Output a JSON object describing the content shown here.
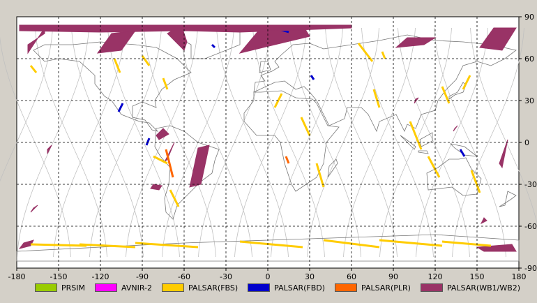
{
  "map": {
    "x_ticks": [
      "-180",
      "-150",
      "-120",
      "-90",
      "-60",
      "-30",
      "0",
      "30",
      "60",
      "90",
      "120",
      "150",
      "180"
    ],
    "y_ticks": [
      "90",
      "60",
      "30",
      "0",
      "-30",
      "-60",
      "-90"
    ],
    "lon_range": [
      -180,
      180
    ],
    "lat_range": [
      -90,
      90
    ],
    "grid": "dashed"
  },
  "legend": [
    {
      "label": "PRSIM",
      "color": "#99cc00"
    },
    {
      "label": "AVNIR-2",
      "color": "#ff00ff"
    },
    {
      "label": "PALSAR(FBS)",
      "color": "#ffcc00"
    },
    {
      "label": "PALSAR(FBD)",
      "color": "#0000cc"
    },
    {
      "label": "PALSAR(PLR)",
      "color": "#ff6600"
    },
    {
      "label": "PALSAR(WB1/WB2)",
      "color": "#993366"
    }
  ],
  "colors": {
    "fbs": "#ffcc00",
    "fbd": "#0000cc",
    "plr": "#ff6600",
    "wb": "#993366",
    "land": "#777777",
    "orbit": "#c0c0c0",
    "grid": "#000000"
  },
  "chart_data": {
    "type": "map",
    "segments": [
      {
        "mode": "wb",
        "lat": [
          83,
          81,
          83
        ],
        "lon": [
          -178,
          -20,
          60
        ]
      },
      {
        "mode": "wb",
        "lon": [
          -172,
          -160,
          -160,
          -172
        ],
        "lat": [
          70,
          78,
          82,
          64
        ]
      },
      {
        "mode": "wb",
        "lon": [
          -122,
          -112,
          -95,
          -105
        ],
        "lat": [
          64,
          78,
          80,
          66
        ]
      },
      {
        "mode": "wb",
        "lon": [
          -72,
          -62,
          -58,
          -60
        ],
        "lat": [
          78,
          84,
          72,
          66
        ]
      },
      {
        "mode": "wb",
        "lon": [
          -20,
          -5,
          25,
          30
        ],
        "lat": [
          64,
          82,
          84,
          76
        ]
      },
      {
        "mode": "wb",
        "lon": [
          92,
          100,
          120,
          112
        ],
        "lat": [
          68,
          75,
          75,
          70
        ]
      },
      {
        "mode": "wb",
        "lon": [
          152,
          162,
          178,
          168
        ],
        "lat": [
          68,
          82,
          82,
          66
        ]
      },
      {
        "mode": "wb",
        "lon": [
          -80,
          -75,
          -71,
          -78
        ],
        "lat": [
          5,
          10,
          6,
          2
        ]
      },
      {
        "mode": "wb",
        "lon": [
          -74,
          -67,
          -72
        ],
        "lat": [
          -14,
          0,
          -12
        ]
      },
      {
        "mode": "wb",
        "lon": [
          -50,
          -42,
          -48,
          -56
        ],
        "lat": [
          -4,
          -2,
          -30,
          -32
        ]
      },
      {
        "mode": "wb",
        "lon": [
          -82,
          -76,
          -78,
          -84
        ],
        "lat": [
          -30,
          -31,
          -34,
          -33
        ]
      },
      {
        "mode": "wb",
        "lon": [
          -158,
          -155,
          -158
        ],
        "lat": [
          -8,
          -2,
          -5
        ]
      },
      {
        "mode": "wb",
        "lon": [
          -170,
          -165,
          -168
        ],
        "lat": [
          -50,
          -45,
          -47
        ]
      },
      {
        "mode": "wb",
        "lon": [
          -175,
          -168,
          -170,
          -178
        ],
        "lat": [
          -72,
          -70,
          -74,
          -76
        ]
      },
      {
        "mode": "wb",
        "lon": [
          150,
          175,
          178,
          155
        ],
        "lat": [
          -75,
          -73,
          -78,
          -78
        ]
      },
      {
        "mode": "wb",
        "lon": [
          105,
          108,
          106
        ],
        "lat": [
          28,
          32,
          31
        ]
      },
      {
        "mode": "wb",
        "lon": [
          133,
          136,
          134
        ],
        "lat": [
          8,
          12,
          10
        ]
      },
      {
        "mode": "wb",
        "lon": [
          166,
          172,
          168
        ],
        "lat": [
          -15,
          2,
          -18
        ]
      },
      {
        "mode": "wb",
        "lon": [
          153,
          157,
          155
        ],
        "lat": [
          -58,
          -56,
          -54
        ]
      },
      {
        "mode": "fbd",
        "lon": [
          5,
          15
        ],
        "lat": [
          82,
          79
        ]
      },
      {
        "mode": "fbd",
        "lon": [
          -40,
          -38
        ],
        "lat": [
          70,
          68
        ]
      },
      {
        "mode": "fbd",
        "lon": [
          -107,
          -104
        ],
        "lat": [
          22,
          28
        ]
      },
      {
        "mode": "fbd",
        "lon": [
          -87,
          -85
        ],
        "lat": [
          -2,
          3
        ]
      },
      {
        "mode": "fbd",
        "lon": [
          138,
          141
        ],
        "lat": [
          -5,
          -10
        ]
      },
      {
        "mode": "fbd",
        "lon": [
          31,
          33
        ],
        "lat": [
          48,
          45
        ]
      },
      {
        "mode": "plr",
        "lon": [
          13,
          15
        ],
        "lat": [
          -10,
          -15
        ]
      },
      {
        "mode": "plr",
        "lon": [
          -73,
          -68
        ],
        "lat": [
          -5,
          -25
        ]
      },
      {
        "mode": "fbs",
        "lon": [
          -170,
          -166
        ],
        "lat": [
          55,
          50
        ]
      },
      {
        "mode": "fbs",
        "lon": [
          -110,
          -106
        ],
        "lat": [
          60,
          50
        ]
      },
      {
        "mode": "fbs",
        "lon": [
          -90,
          -85
        ],
        "lat": [
          62,
          55
        ]
      },
      {
        "mode": "fbs",
        "lon": [
          -75,
          -72
        ],
        "lat": [
          46,
          38
        ]
      },
      {
        "mode": "fbs",
        "lon": [
          -82,
          -72
        ],
        "lat": [
          -10,
          -15
        ]
      },
      {
        "mode": "fbs",
        "lon": [
          -70,
          -64
        ],
        "lat": [
          -34,
          -46
        ]
      },
      {
        "mode": "fbs",
        "lon": [
          10,
          5
        ],
        "lat": [
          35,
          25
        ]
      },
      {
        "mode": "fbs",
        "lon": [
          24,
          30
        ],
        "lat": [
          18,
          5
        ]
      },
      {
        "mode": "fbs",
        "lon": [
          35,
          40
        ],
        "lat": [
          -15,
          -32
        ]
      },
      {
        "mode": "fbs",
        "lon": [
          65,
          75
        ],
        "lat": [
          71,
          58
        ]
      },
      {
        "mode": "fbs",
        "lon": [
          76,
          80
        ],
        "lat": [
          38,
          25
        ]
      },
      {
        "mode": "fbs",
        "lon": [
          82,
          84
        ],
        "lat": [
          65,
          60
        ]
      },
      {
        "mode": "fbs",
        "lon": [
          102,
          110
        ],
        "lat": [
          15,
          -5
        ]
      },
      {
        "mode": "fbs",
        "lon": [
          115,
          123
        ],
        "lat": [
          -10,
          -25
        ]
      },
      {
        "mode": "fbs",
        "lon": [
          125,
          130
        ],
        "lat": [
          40,
          28
        ]
      },
      {
        "mode": "fbs",
        "lon": [
          140,
          145
        ],
        "lat": [
          38,
          48
        ]
      },
      {
        "mode": "fbs",
        "lon": [
          146,
          152
        ],
        "lat": [
          -20,
          -36
        ]
      },
      {
        "mode": "fbs",
        "lon": [
          -170,
          -130
        ],
        "lat": [
          -73,
          -74
        ]
      },
      {
        "mode": "fbs",
        "lon": [
          -135,
          -95
        ],
        "lat": [
          -73,
          -75
        ]
      },
      {
        "mode": "fbs",
        "lon": [
          -95,
          -50
        ],
        "lat": [
          -72,
          -75
        ]
      },
      {
        "mode": "fbs",
        "lon": [
          -20,
          25
        ],
        "lat": [
          -71,
          -75
        ]
      },
      {
        "mode": "fbs",
        "lon": [
          40,
          80
        ],
        "lat": [
          -70,
          -75
        ]
      },
      {
        "mode": "fbs",
        "lon": [
          80,
          125
        ],
        "lat": [
          -70,
          -74
        ]
      },
      {
        "mode": "fbs",
        "lon": [
          125,
          160
        ],
        "lat": [
          -71,
          -74
        ]
      }
    ]
  }
}
